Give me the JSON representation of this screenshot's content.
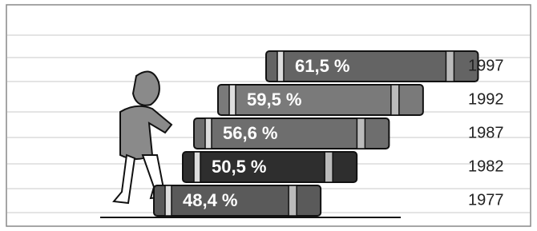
{
  "chart_data": {
    "type": "bar",
    "categories": [
      "1977",
      "1982",
      "1987",
      "1992",
      "1997"
    ],
    "values": [
      48.4,
      50.5,
      56.6,
      59.5,
      61.5
    ],
    "value_labels": [
      "48,4 %",
      "50,5 %",
      "56,6 %",
      "59,5 %",
      "61,5 %"
    ],
    "colors": [
      "#5a5a5a",
      "#2e2e2e",
      "#6e6e6e",
      "#7a7a7a",
      "#646464"
    ]
  }
}
